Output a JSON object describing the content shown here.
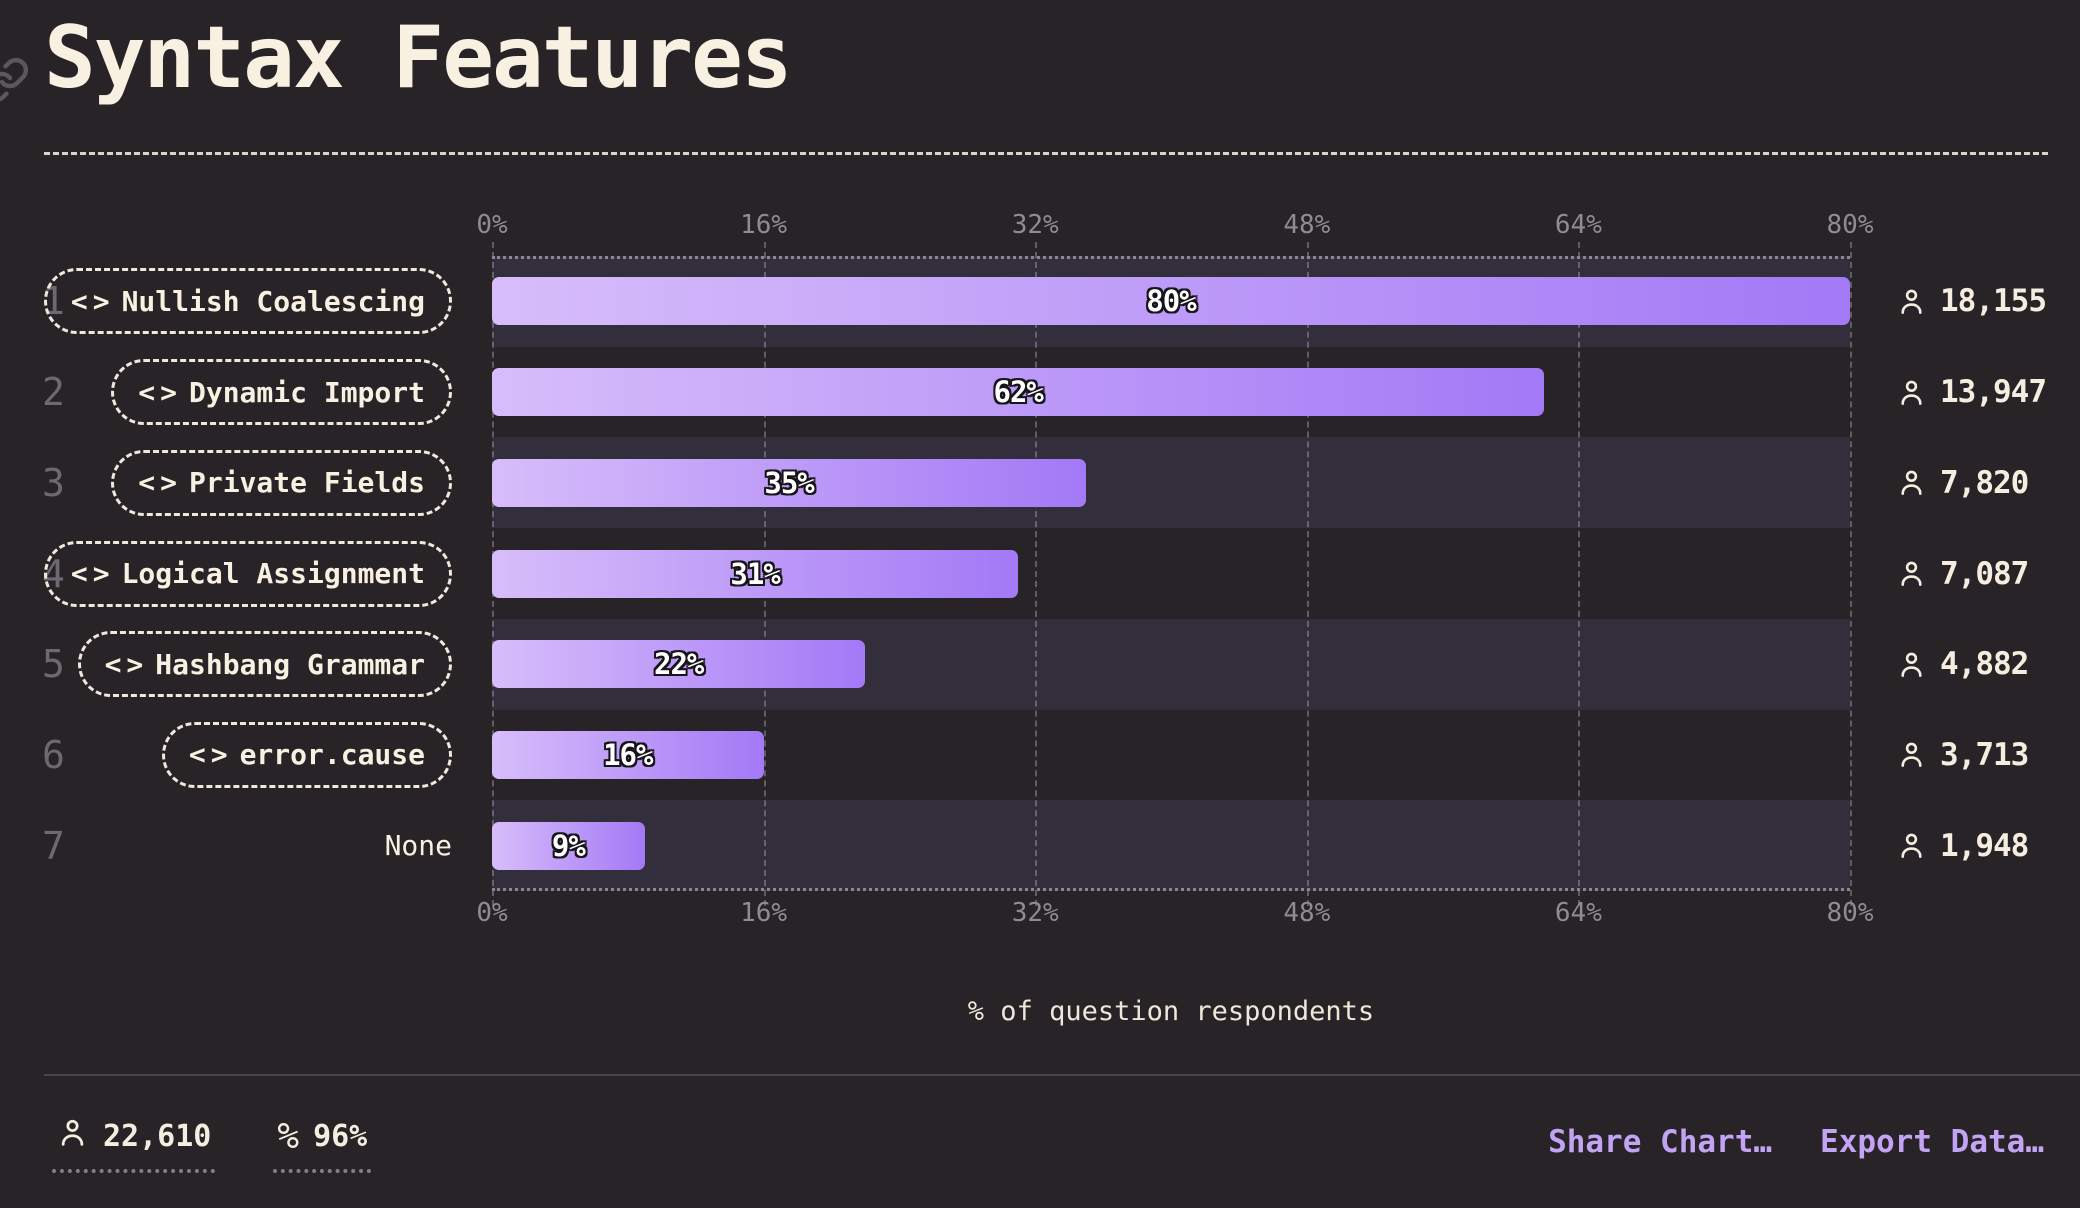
{
  "colors": {
    "background": "#282327",
    "row_band": "#322e3c",
    "bar_gradient_start": "#d7bdfa",
    "bar_gradient_end": "#a379f6",
    "link_purple": "#c2a3f4",
    "cream_text": "#f8f1e2",
    "muted_text": "#8f8a94"
  },
  "header": {
    "title": "Syntax Features"
  },
  "icons": {
    "code_glyph": "<>",
    "percent_glyph": "%"
  },
  "chart_data": {
    "type": "bar",
    "orientation": "horizontal",
    "title": "Syntax Features",
    "xlabel": "% of question respondents",
    "xlim": [
      0,
      80
    ],
    "x_ticks": [
      "0%",
      "16%",
      "32%",
      "48%",
      "64%",
      "80%"
    ],
    "x_tick_values": [
      0,
      16,
      32,
      48,
      64,
      80
    ],
    "grid": "vertical-dashed",
    "legend": "none",
    "ranks": [
      "1",
      "2",
      "3",
      "4",
      "5",
      "6",
      "7"
    ],
    "categories": [
      "Nullish Coalescing",
      "Dynamic Import",
      "Private Fields",
      "Logical Assignment",
      "Hashbang Grammar",
      "error.cause",
      "None"
    ],
    "has_code_pill": [
      true,
      true,
      true,
      true,
      true,
      true,
      false
    ],
    "values": [
      80,
      62,
      35,
      31,
      22,
      16,
      9
    ],
    "value_labels": [
      "80%",
      "62%",
      "35%",
      "31%",
      "22%",
      "16%",
      "9%"
    ],
    "respondent_counts": [
      "18,155",
      "13,947",
      "7,820",
      "7,087",
      "4,882",
      "3,713",
      "1,948"
    ]
  },
  "footer": {
    "total_respondents": "22,610",
    "completion_rate": "96%",
    "links": [
      {
        "label": "Share Chart…"
      },
      {
        "label": "Export Data…"
      }
    ]
  }
}
